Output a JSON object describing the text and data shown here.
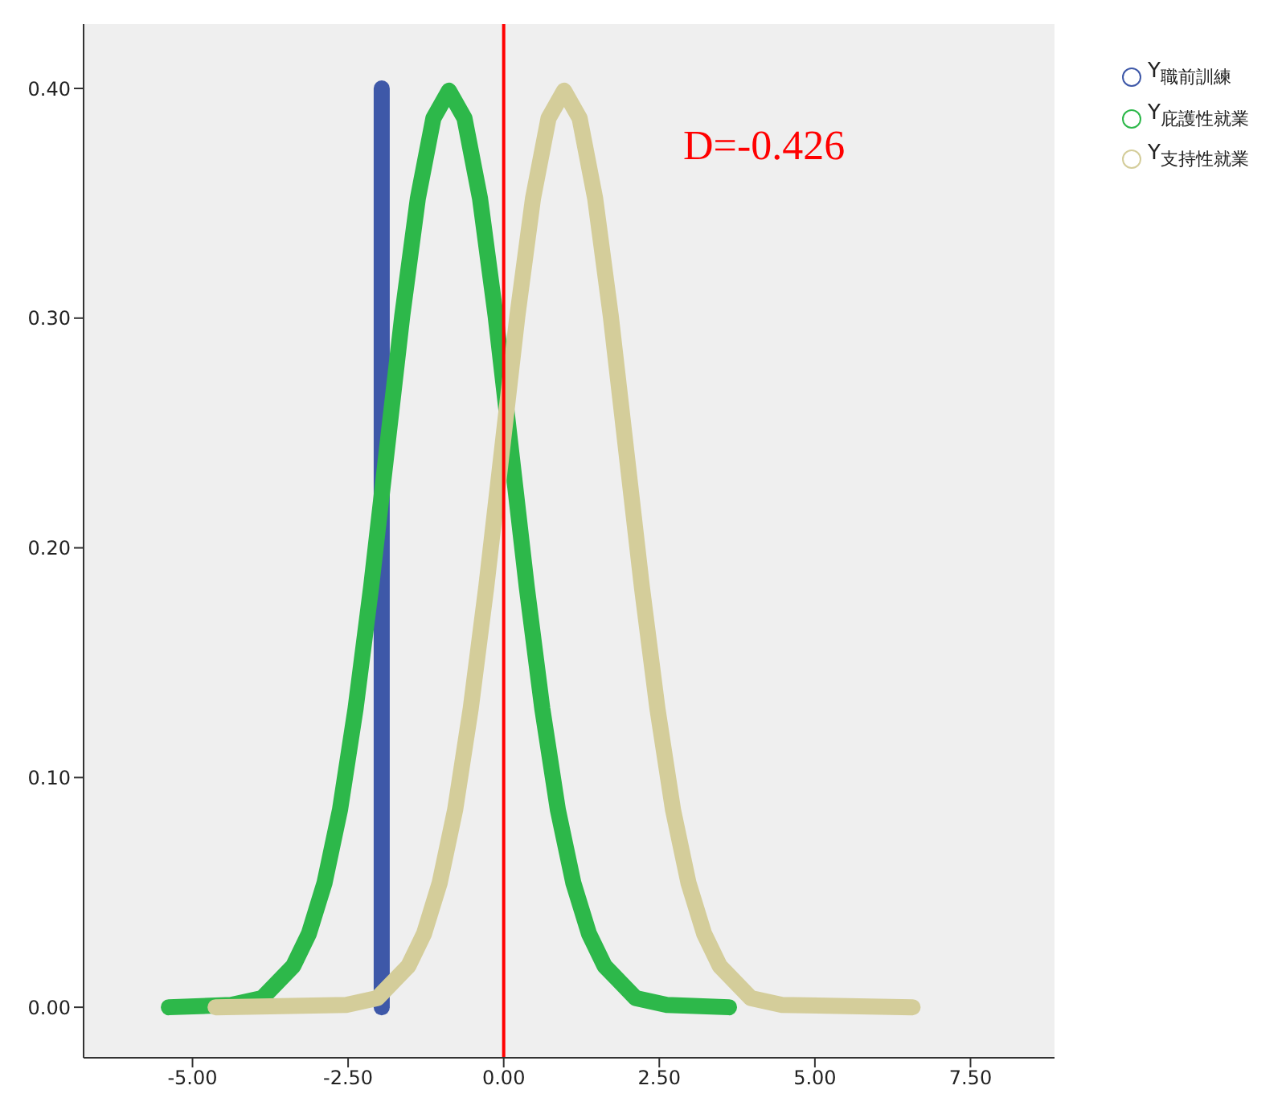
{
  "chart_data": {
    "type": "line",
    "xlim": [
      -6.75,
      8.85
    ],
    "ylim": [
      -0.022,
      0.428
    ],
    "xticks": [
      {
        "value": -5,
        "label": "-5.00"
      },
      {
        "value": -2.5,
        "label": "-2.50"
      },
      {
        "value": 0,
        "label": "0.00"
      },
      {
        "value": 2.5,
        "label": "2.50"
      },
      {
        "value": 5,
        "label": "5.00"
      },
      {
        "value": 7.5,
        "label": "7.50"
      }
    ],
    "yticks": [
      {
        "value": 0,
        "label": "0.00"
      },
      {
        "value": 0.1,
        "label": "0.10"
      },
      {
        "value": 0.2,
        "label": "0.20"
      },
      {
        "value": 0.3,
        "label": "0.30"
      },
      {
        "value": 0.4,
        "label": "0.40"
      }
    ],
    "series": [
      {
        "name": "Y$_{職前訓練}$",
        "color": "#3e58a8",
        "x": [
          -1.96,
          -1.96,
          -1.96,
          -1.96,
          -1.96,
          -1.96,
          -1.96,
          -1.96,
          -1.96
        ],
        "values": [
          0,
          0.05,
          0.1,
          0.15,
          0.2,
          0.25,
          0.3,
          0.35,
          0.4
        ]
      },
      {
        "name": "Y$_{庇護性就業}$",
        "color": "#2db84a",
        "x": [
          -5.38,
          -4.38,
          -3.88,
          -3.38,
          -3.13,
          -2.88,
          -2.63,
          -2.38,
          -2.13,
          -1.88,
          -1.63,
          -1.38,
          -1.13,
          -0.88,
          -0.63,
          -0.38,
          -0.13,
          0.12,
          0.37,
          0.62,
          0.87,
          1.12,
          1.37,
          1.62,
          2.12,
          2.62,
          3.62
        ],
        "values": [
          0,
          0.001,
          0.004,
          0.018,
          0.032,
          0.054,
          0.086,
          0.13,
          0.183,
          0.242,
          0.301,
          0.352,
          0.387,
          0.399,
          0.387,
          0.352,
          0.301,
          0.242,
          0.183,
          0.13,
          0.086,
          0.054,
          0.032,
          0.018,
          0.004,
          0.001,
          0
        ]
      },
      {
        "name": "Y$_{支持性就業}$",
        "color": "#d4cd9a",
        "x": [
          -4.63,
          -2.53,
          -2.03,
          -1.53,
          -1.28,
          -1.03,
          -0.78,
          -0.53,
          -0.28,
          -0.03,
          0.22,
          0.47,
          0.72,
          0.97,
          1.22,
          1.47,
          1.72,
          1.97,
          2.22,
          2.47,
          2.72,
          2.97,
          3.22,
          3.47,
          3.97,
          4.47,
          6.57
        ],
        "values": [
          0,
          0.001,
          0.004,
          0.018,
          0.032,
          0.054,
          0.086,
          0.13,
          0.183,
          0.242,
          0.301,
          0.352,
          0.387,
          0.399,
          0.387,
          0.352,
          0.301,
          0.242,
          0.183,
          0.13,
          0.086,
          0.054,
          0.032,
          0.018,
          0.004,
          0.001,
          0
        ]
      }
    ],
    "ref_lines": [
      {
        "axis": "x",
        "value": 0,
        "color": "#ff0000"
      }
    ],
    "annotations": [
      "D=-0.426"
    ],
    "legend": "top right"
  }
}
